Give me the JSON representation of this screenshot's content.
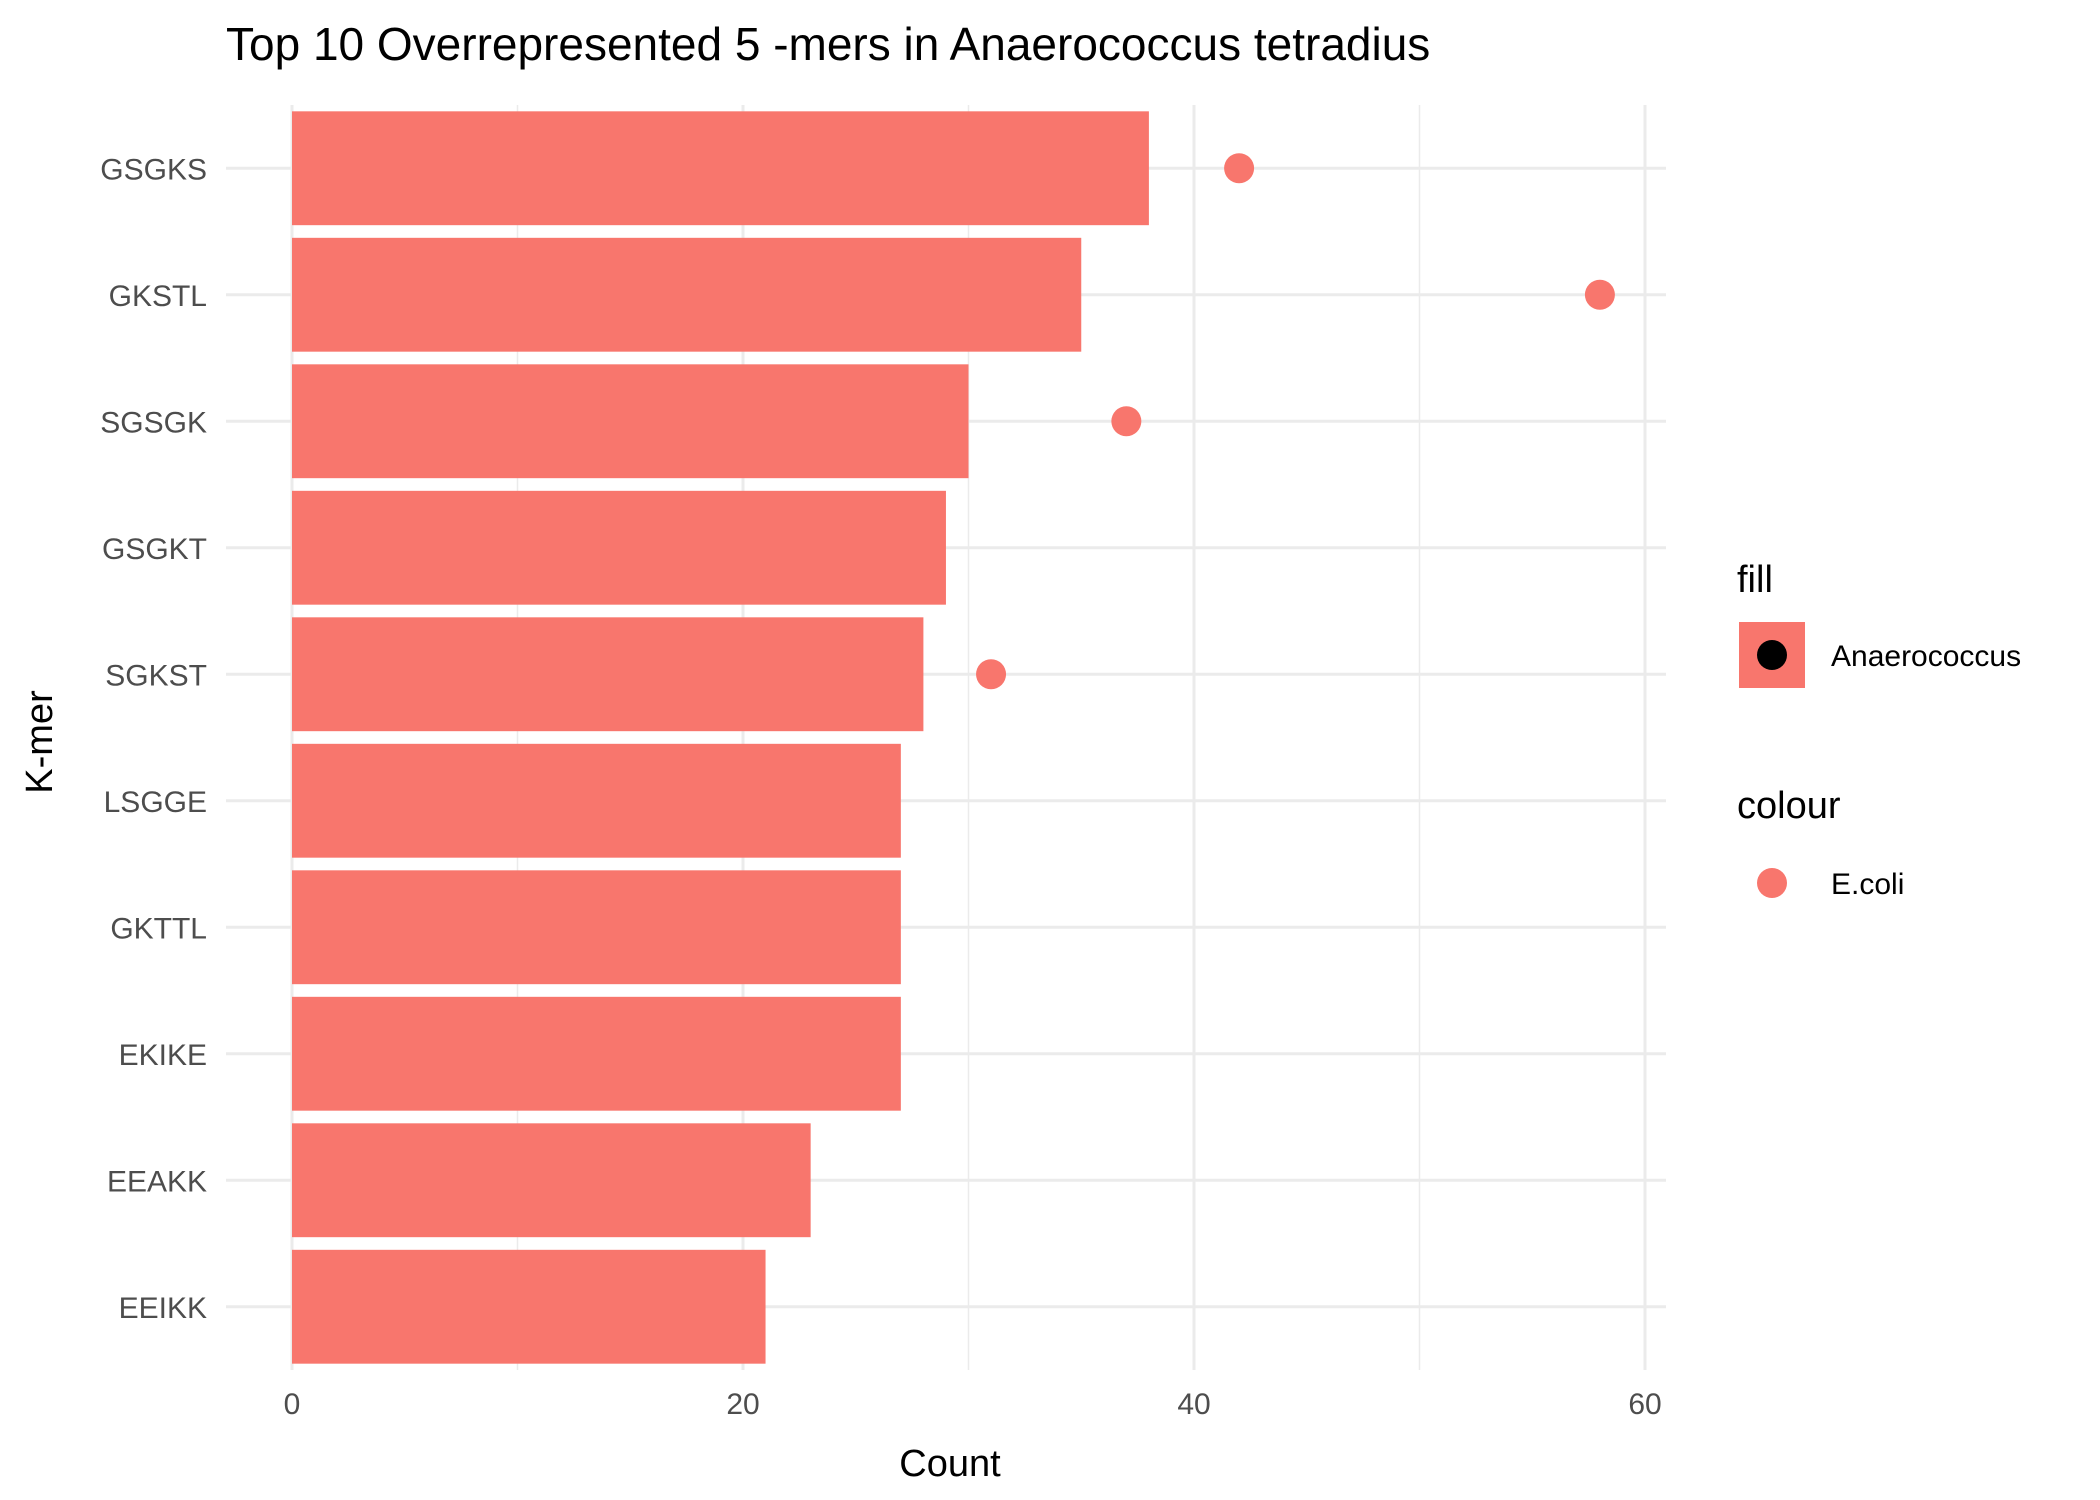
{
  "chart_data": {
    "type": "bar",
    "title": "Top 10 Overrepresented 5 -mers in Anaerococcus tetradius",
    "xlabel": "Count",
    "ylabel": "K-mer",
    "xlim": [
      0,
      61
    ],
    "x_ticks": [
      0,
      20,
      40,
      60
    ],
    "grid": true,
    "orientation": "horizontal",
    "categories": [
      "GSGKS",
      "GKSTL",
      "SGSGK",
      "GSGKT",
      "SGKST",
      "LSGGE",
      "GKTTL",
      "EKIKE",
      "EEAKK",
      "EEIKK"
    ],
    "series": [
      {
        "name": "Anaerococcus",
        "kind": "bar",
        "color": "#f8766d",
        "values": [
          38,
          35,
          30,
          29,
          28,
          27,
          27,
          27,
          23,
          21
        ]
      },
      {
        "name": "E.coli",
        "kind": "point",
        "color": "#f8766d",
        "values": [
          42,
          58,
          37,
          null,
          31,
          null,
          null,
          null,
          null,
          null
        ]
      }
    ],
    "legend": {
      "placement": "right",
      "fill_title": "fill",
      "colour_title": "colour"
    }
  }
}
